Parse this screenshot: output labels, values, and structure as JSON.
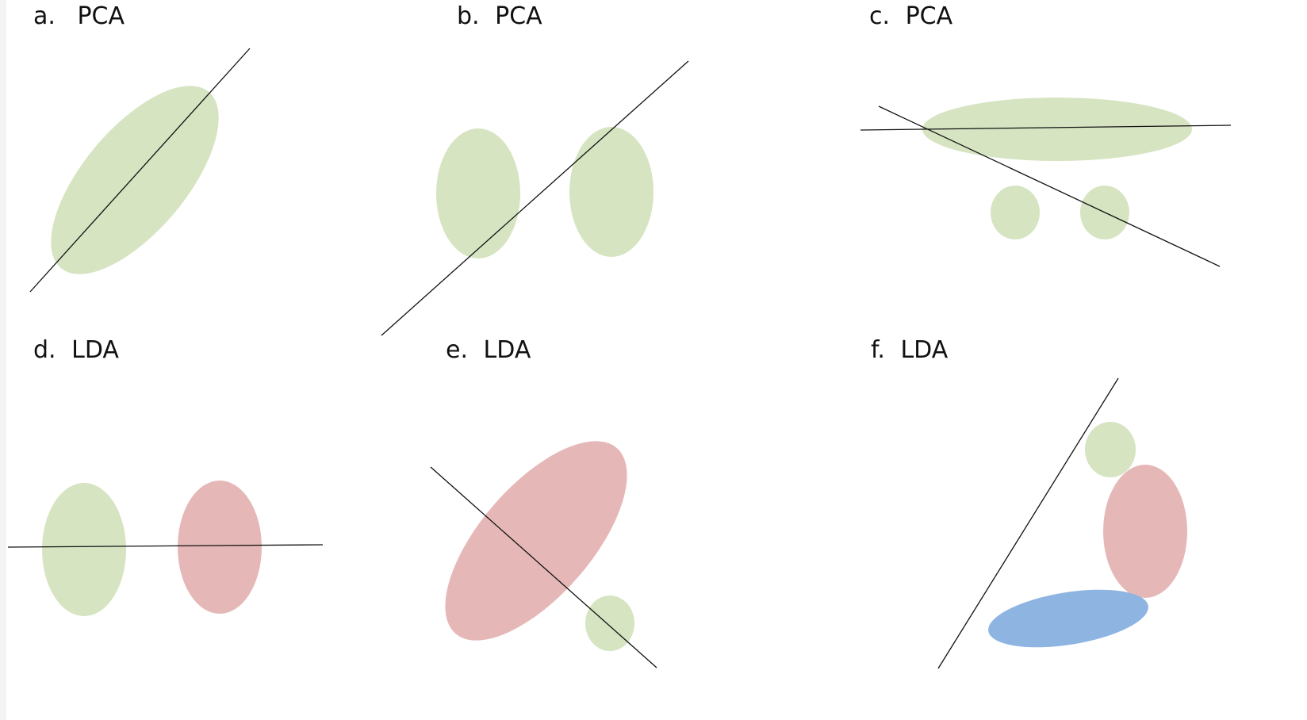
{
  "panels": [
    {
      "id": "a",
      "letter": "a.",
      "method": "PCA"
    },
    {
      "id": "b",
      "letter": "b.",
      "method": "PCA"
    },
    {
      "id": "c",
      "letter": "c.",
      "method": "PCA"
    },
    {
      "id": "d",
      "letter": "d.",
      "method": "LDA"
    },
    {
      "id": "e",
      "letter": "e.",
      "method": "LDA"
    },
    {
      "id": "f",
      "letter": "f.",
      "method": "LDA"
    }
  ],
  "colors": {
    "class_green": "#d6e4c2",
    "class_red": "#e5b8b7",
    "class_blue": "#8eb4e2",
    "projection_line": "#111111",
    "background": "#ffffff"
  }
}
